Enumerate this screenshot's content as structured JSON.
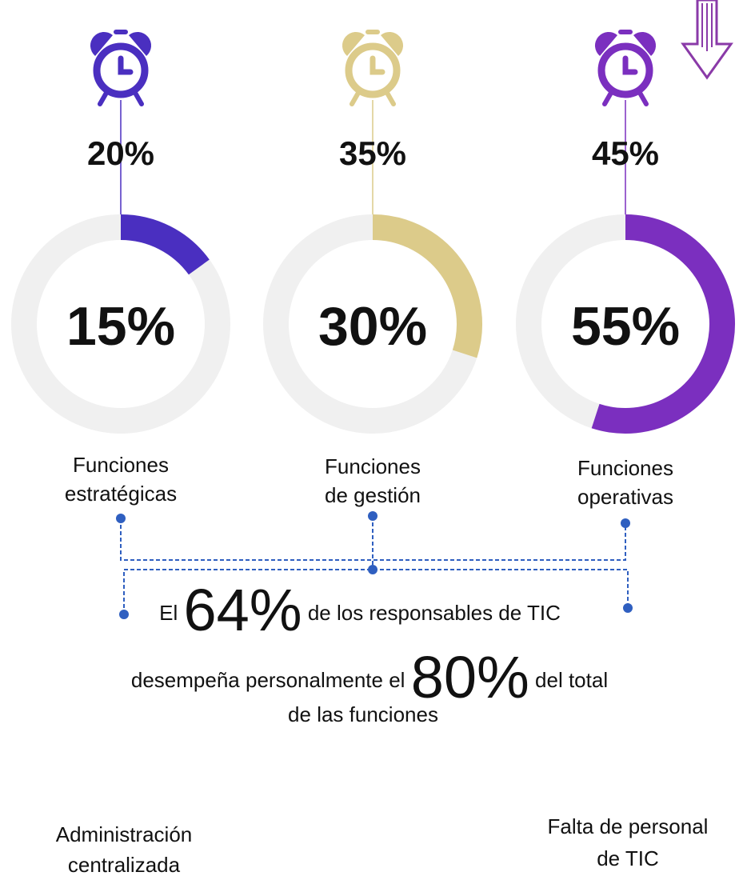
{
  "items": [
    {
      "top": {
        "value": 20,
        "label": "20%"
      },
      "ring": {
        "value": 15,
        "label": "15%"
      },
      "label": [
        "Funciones",
        "estratégicas"
      ],
      "color": "#4a2fc0"
    },
    {
      "top": {
        "value": 35,
        "label": "35%"
      },
      "ring": {
        "value": 30,
        "label": "30%"
      },
      "label": [
        "Funciones",
        "de gestión"
      ],
      "color": "#dccb8a"
    },
    {
      "top": {
        "value": 45,
        "label": "45%"
      },
      "ring": {
        "value": 55,
        "label": "55%"
      },
      "label": [
        "Funciones",
        "operativas"
      ],
      "color": "#7b2fbf"
    }
  ],
  "statement": {
    "line1": [
      "El",
      {
        "value": 64,
        "label": "64%"
      },
      "de los responsables de TIC"
    ],
    "line2": [
      "desempeña personalmente el",
      {
        "value": 80,
        "label": "80%"
      },
      "del total"
    ],
    "line3": "de las funciones"
  },
  "causes": [
    [
      "Administración",
      "centralizada"
    ],
    [
      "Falta de personal",
      "de TIC"
    ]
  ]
}
